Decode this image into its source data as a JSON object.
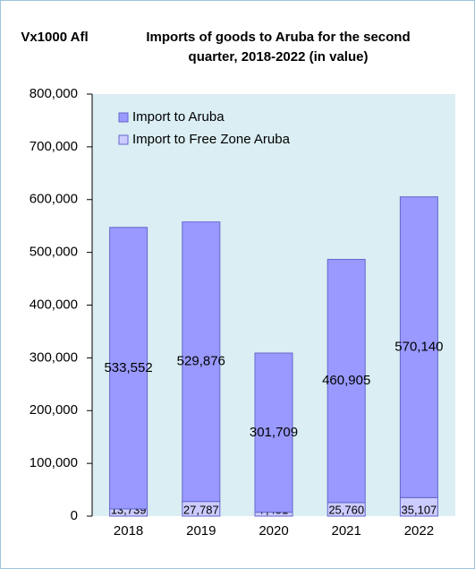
{
  "chart_data": {
    "type": "stacked_bar",
    "title": "Imports of goods to Aruba for the second quarter, 2018-2022 (in value)",
    "y_label": "Vx1000 Afl",
    "categories": [
      "2018",
      "2019",
      "2020",
      "2021",
      "2022"
    ],
    "series": [
      {
        "name": "Import to Free Zone Aruba",
        "color": "#ccccff",
        "values": [
          13739,
          27787,
          7451,
          25760,
          35107
        ],
        "value_labels": [
          "13,739",
          "27,787",
          "7,451",
          "25,760",
          "35,107"
        ]
      },
      {
        "name": "Import to Aruba",
        "color": "#9999ff",
        "values": [
          533552,
          529876,
          301709,
          460905,
          570140
        ],
        "value_labels": [
          "533,552",
          "529,876",
          "301,709",
          "460,905",
          "570,140"
        ]
      }
    ],
    "ylim": [
      0,
      800000
    ],
    "yticks": [
      {
        "value": 0,
        "label": "0"
      },
      {
        "value": 100000,
        "label": "100,000"
      },
      {
        "value": 200000,
        "label": "200,000"
      },
      {
        "value": 300000,
        "label": "300,000"
      },
      {
        "value": 400000,
        "label": "400,000"
      },
      {
        "value": 500000,
        "label": "500,000"
      },
      {
        "value": 600000,
        "label": "600,000"
      },
      {
        "value": 700000,
        "label": "700,000"
      },
      {
        "value": 800000,
        "label": "800,000"
      }
    ],
    "legend": "top-left"
  }
}
